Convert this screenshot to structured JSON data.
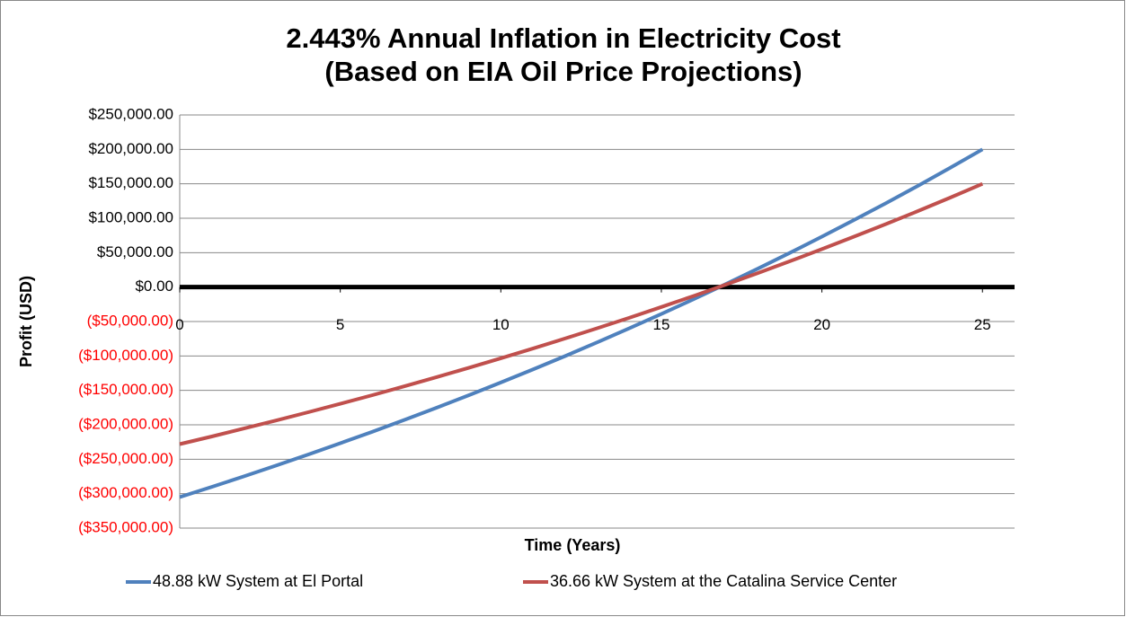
{
  "chart_data": {
    "type": "line",
    "title": "2.443% Annual Inflation in Electricity Cost",
    "subtitle": "(Based on EIA Oil Price Projections)",
    "x_label": "Time (Years)",
    "y_label": "Profit (USD)",
    "x": [
      0,
      1,
      2,
      3,
      4,
      5,
      6,
      7,
      8,
      9,
      10,
      11,
      12,
      13,
      14,
      15,
      16,
      17,
      18,
      19,
      20,
      21,
      22,
      23,
      24,
      25
    ],
    "xlim": [
      0,
      26
    ],
    "xticks": [
      0,
      5,
      10,
      15,
      20,
      25
    ],
    "ylim": [
      -350000,
      250000
    ],
    "yticks": [
      {
        "value": 250000,
        "label": "$250,000.00"
      },
      {
        "value": 200000,
        "label": "$200,000.00"
      },
      {
        "value": 150000,
        "label": "$150,000.00"
      },
      {
        "value": 100000,
        "label": "$100,000.00"
      },
      {
        "value": 50000,
        "label": "$50,000.00"
      },
      {
        "value": 0,
        "label": "$0.00"
      },
      {
        "value": -50000,
        "label": "($50,000.00)"
      },
      {
        "value": -100000,
        "label": "($100,000.00)"
      },
      {
        "value": -150000,
        "label": "($150,000.00)"
      },
      {
        "value": -200000,
        "label": "($200,000.00)"
      },
      {
        "value": -250000,
        "label": "($250,000.00)"
      },
      {
        "value": -300000,
        "label": "($300,000.00)"
      },
      {
        "value": -350000,
        "label": "($350,000.00)"
      }
    ],
    "negative_tick_color": "#ff0000",
    "grid": true,
    "legend": "bottom",
    "series": [
      {
        "name": "48.88 kW System at El Portal",
        "color": "#4f81bd",
        "values": [
          -305000,
          -290100,
          -274900,
          -259200,
          -243200,
          -226800,
          -210000,
          -192800,
          -175200,
          -157100,
          -138600,
          -119600,
          -100200,
          -80300,
          -59900,
          -39100,
          -17700,
          4200,
          26700,
          49700,
          73200,
          97400,
          122100,
          147400,
          173300,
          200000
        ]
      },
      {
        "name": "36.66 kW System at the Catalina Service Center",
        "color": "#c0504d",
        "values": [
          -228000,
          -216900,
          -205400,
          -193700,
          -181800,
          -169500,
          -156900,
          -144000,
          -130800,
          -117300,
          -103400,
          -89300,
          -74700,
          -59800,
          -44600,
          -28900,
          -12900,
          3500,
          20300,
          37500,
          55100,
          73200,
          91700,
          110600,
          130000,
          150000
        ]
      }
    ]
  }
}
